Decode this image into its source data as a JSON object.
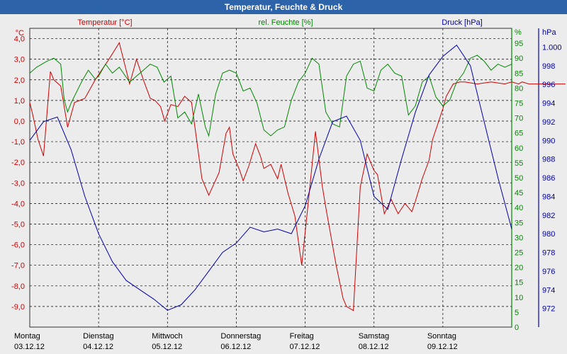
{
  "title": "Temperatur, Feuchte & Druck",
  "colors": {
    "temperature": "#cc0000",
    "humidity": "#008800",
    "pressure": "#0000aa",
    "grid": "#000000",
    "background": "#ececec",
    "titlebar": "#2d63a8"
  },
  "chart_data": {
    "type": "line",
    "title": "Temperatur, Feuchte & Druck",
    "x_labels": [
      {
        "day": "Montag",
        "date": "03.12.12"
      },
      {
        "day": "Dienstag",
        "date": "04.12.12"
      },
      {
        "day": "Mittwoch",
        "date": "05.12.12"
      },
      {
        "day": "Donnerstag",
        "date": "06.12.12"
      },
      {
        "day": "Freitag",
        "date": "07.12.12"
      },
      {
        "day": "Samstag",
        "date": "08.12.12"
      },
      {
        "day": "Sonntag",
        "date": "09.12.12"
      }
    ],
    "axes": {
      "temperature": {
        "label": "Temperatur [°C]",
        "unit": "°C",
        "ylim": [
          -10,
          4.5
        ],
        "ticks": [
          "4,0",
          "3,0",
          "2,0",
          "1,0",
          "0,0",
          "-1,0",
          "-2,0",
          "-3,0",
          "-4,0",
          "-5,0",
          "-6,0",
          "-7,0",
          "-8,0",
          "-9,0"
        ],
        "tick_values": [
          4,
          3,
          2,
          1,
          0,
          -1,
          -2,
          -3,
          -4,
          -5,
          -6,
          -7,
          -8,
          -9
        ]
      },
      "humidity": {
        "label": "rel. Feuchte [%]",
        "unit": "%",
        "ylim": [
          0,
          100
        ],
        "ticks": [
          "95",
          "90",
          "85",
          "80",
          "75",
          "70",
          "65",
          "60",
          "55",
          "50",
          "45",
          "40",
          "35",
          "30",
          "25",
          "20",
          "15",
          "10",
          "5",
          "0"
        ],
        "tick_values": [
          95,
          90,
          85,
          80,
          75,
          70,
          65,
          60,
          55,
          50,
          45,
          40,
          35,
          30,
          25,
          20,
          15,
          10,
          5,
          0
        ]
      },
      "pressure": {
        "label": "Druck [hPa]",
        "unit": "hPa",
        "ylim": [
          970,
          1002
        ],
        "ticks": [
          "1.000",
          "998",
          "996",
          "994",
          "992",
          "990",
          "988",
          "986",
          "984",
          "982",
          "980",
          "978",
          "976",
          "974",
          "972"
        ],
        "tick_values": [
          1000,
          998,
          996,
          994,
          992,
          990,
          988,
          986,
          984,
          982,
          980,
          978,
          976,
          974,
          972
        ]
      }
    },
    "series": [
      {
        "name": "Temperatur",
        "axis": "temperature",
        "x": [
          0,
          0.05,
          0.12,
          0.2,
          0.3,
          0.35,
          0.45,
          0.55,
          0.65,
          0.8,
          0.95,
          1.05,
          1.15,
          1.3,
          1.45,
          1.55,
          1.65,
          1.75,
          1.82,
          1.9,
          1.96,
          2.05,
          2.15,
          2.25,
          2.35,
          2.5,
          2.6,
          2.75,
          2.85,
          2.9,
          2.95,
          3.05,
          3.1,
          3.18,
          3.28,
          3.35,
          3.4,
          3.5,
          3.6,
          3.65,
          3.75,
          3.85,
          3.95,
          4.05,
          4.15,
          4.25,
          4.3,
          4.45,
          4.55,
          4.6,
          4.7,
          4.8,
          4.9,
          5.0,
          5.05,
          5.15,
          5.25,
          5.35,
          5.45,
          5.5,
          5.55,
          5.6,
          5.7,
          5.8,
          5.85,
          6.0,
          6.05,
          6.15,
          6.25,
          6.32,
          6.5,
          6.7,
          6.9,
          7.0,
          7.1,
          7.15,
          7.25,
          7.35,
          7.5,
          7.65,
          7.78
        ],
        "values": [
          0.9,
          0.2,
          -0.9,
          -1.7,
          2.4,
          2.0,
          1.7,
          -0.3,
          0.9,
          1.1,
          2.0,
          2.5,
          3.0,
          3.8,
          1.8,
          3.0,
          2.0,
          1.1,
          1.0,
          0.7,
          0.0,
          0.8,
          0.7,
          1.2,
          0.9,
          -2.8,
          -3.6,
          -2.5,
          -0.6,
          -0.3,
          -1.6,
          -2.4,
          -2.9,
          -2.2,
          -1.1,
          -1.7,
          -2.3,
          -2.1,
          -2.8,
          -2.1,
          -3.5,
          -4.6,
          -7.0,
          -3.8,
          -0.5,
          -3.2,
          -4.2,
          -7.0,
          -8.6,
          -9.0,
          -9.2,
          -3.2,
          -1.6,
          -2.4,
          -2.6,
          -4.5,
          -3.8,
          -4.5,
          -4.0,
          -4.2,
          -4.4,
          -3.9,
          -2.8,
          -1.9,
          -0.9,
          0.6,
          1.2,
          1.8,
          1.9,
          1.9,
          1.8,
          1.9,
          1.8,
          1.9,
          1.8,
          1.9,
          1.8,
          1.8,
          1.8,
          1.8,
          1.8
        ]
      },
      {
        "name": "rel. Feuchte",
        "axis": "humidity",
        "x": [
          0,
          0.1,
          0.25,
          0.35,
          0.45,
          0.5,
          0.55,
          0.6,
          0.75,
          0.85,
          0.95,
          1.0,
          1.1,
          1.2,
          1.3,
          1.45,
          1.55,
          1.65,
          1.75,
          1.85,
          1.95,
          2.05,
          2.15,
          2.25,
          2.35,
          2.45,
          2.55,
          2.6,
          2.7,
          2.8,
          2.9,
          3.0,
          3.1,
          3.2,
          3.3,
          3.4,
          3.5,
          3.6,
          3.7,
          3.8,
          3.9,
          4.0,
          4.1,
          4.2,
          4.3,
          4.4,
          4.5,
          4.6,
          4.7,
          4.8,
          4.9,
          5.0,
          5.1,
          5.2,
          5.3,
          5.4,
          5.5,
          5.6,
          5.7,
          5.8,
          5.9,
          6.0,
          6.1,
          6.2,
          6.3,
          6.4,
          6.5,
          6.6,
          6.7,
          6.8,
          6.9,
          7.0
        ],
        "values": [
          85,
          87,
          89,
          90,
          88,
          76,
          72,
          75,
          82,
          86,
          83,
          84,
          88,
          85,
          87,
          82,
          84,
          86,
          88,
          87,
          82,
          84,
          70,
          72,
          68,
          78,
          67,
          64,
          78,
          85,
          86,
          85,
          79,
          80,
          75,
          66,
          64,
          66,
          67,
          76,
          82,
          85,
          90,
          88,
          72,
          68,
          67,
          84,
          88,
          89,
          80,
          79,
          86,
          88,
          85,
          84,
          71,
          74,
          82,
          84,
          77,
          74,
          76,
          82,
          85,
          90,
          91,
          89,
          86,
          88,
          87,
          88
        ]
      },
      {
        "name": "Druck",
        "axis": "pressure",
        "x": [
          0,
          0.2,
          0.4,
          0.6,
          0.8,
          1.0,
          1.2,
          1.4,
          1.6,
          1.8,
          2.0,
          2.2,
          2.4,
          2.6,
          2.8,
          3.0,
          3.2,
          3.4,
          3.6,
          3.8,
          4.0,
          4.2,
          4.4,
          4.6,
          4.8,
          5.0,
          5.2,
          5.4,
          5.6,
          5.8,
          6.0,
          6.2,
          6.4,
          6.6,
          6.8,
          7.0
        ],
        "values": [
          990,
          992,
          992.5,
          989,
          984,
          980,
          977,
          975,
          974,
          973,
          971.8,
          972.4,
          974,
          976,
          978,
          979,
          980.7,
          980.2,
          980.5,
          980,
          983,
          988,
          992,
          992.6,
          990,
          984,
          982.6,
          988,
          993,
          997,
          999,
          1000.2,
          998,
          992,
          986,
          980.5
        ]
      }
    ]
  }
}
